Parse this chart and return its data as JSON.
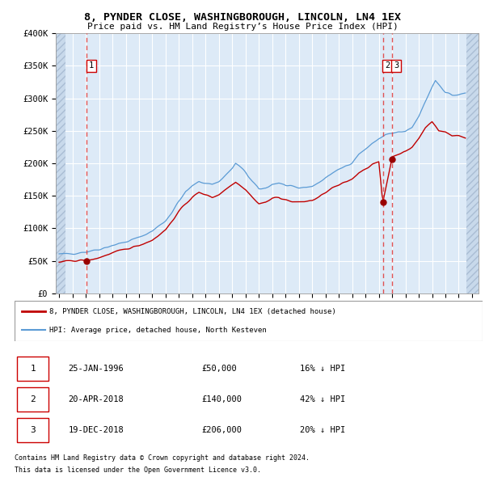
{
  "title": "8, PYNDER CLOSE, WASHINGBOROUGH, LINCOLN, LN4 1EX",
  "subtitle": "Price paid vs. HM Land Registry’s House Price Index (HPI)",
  "ylim": [
    0,
    400000
  ],
  "xlim_left": 1993.75,
  "xlim_right": 2025.5,
  "background_color": "#ddeaf7",
  "grid_color": "#ffffff",
  "transactions": [
    {
      "date_num": 1996.07,
      "price": 50000,
      "label": "1",
      "date_str": "25-JAN-1996",
      "price_str": "£50,000",
      "hpi_str": "16% ↓ HPI"
    },
    {
      "date_num": 2018.3,
      "price": 140000,
      "label": "2",
      "date_str": "20-APR-2018",
      "price_str": "£140,000",
      "hpi_str": "42% ↓ HPI"
    },
    {
      "date_num": 2018.97,
      "price": 206000,
      "label": "3",
      "date_str": "19-DEC-2018",
      "price_str": "£206,000",
      "hpi_str": "20% ↓ HPI"
    }
  ],
  "legend_label_red": "8, PYNDER CLOSE, WASHINGBOROUGH, LINCOLN, LN4 1EX (detached house)",
  "legend_label_blue": "HPI: Average price, detached house, North Kesteven",
  "footer1": "Contains HM Land Registry data © Crown copyright and database right 2024.",
  "footer2": "This data is licensed under the Open Government Licence v3.0.",
  "hatch_left_end": 1994.5,
  "hatch_right_start": 2024.58,
  "yticks": [
    0,
    50000,
    100000,
    150000,
    200000,
    250000,
    300000,
    350000,
    400000
  ],
  "ytick_labels": [
    "£0",
    "£50K",
    "£100K",
    "£150K",
    "£200K",
    "£250K",
    "£300K",
    "£350K",
    "£400K"
  ],
  "xticks": [
    1994,
    1995,
    1996,
    1997,
    1998,
    1999,
    2000,
    2001,
    2002,
    2003,
    2004,
    2005,
    2006,
    2007,
    2008,
    2009,
    2010,
    2011,
    2012,
    2013,
    2014,
    2015,
    2016,
    2017,
    2018,
    2019,
    2020,
    2021,
    2022,
    2023,
    2024,
    2025
  ]
}
